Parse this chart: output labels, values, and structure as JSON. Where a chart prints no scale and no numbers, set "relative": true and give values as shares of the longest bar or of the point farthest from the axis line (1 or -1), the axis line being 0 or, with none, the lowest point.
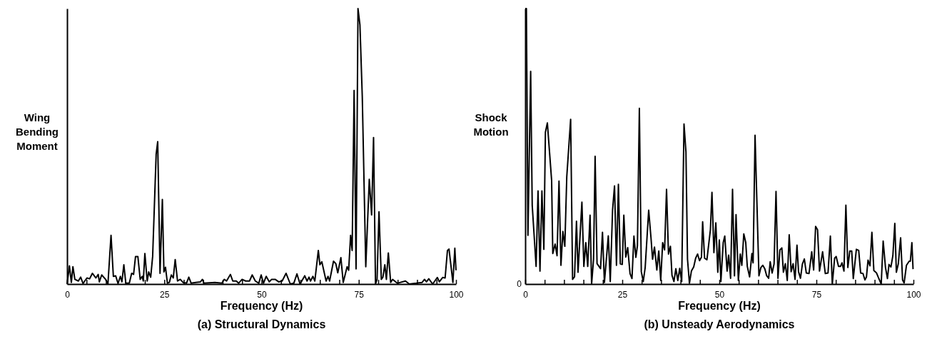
{
  "chart_data": [
    {
      "type": "line",
      "title": "(a) Structural Dynamics",
      "xlabel": "Frequency (Hz)",
      "ylabel": "Wing Bending Moment",
      "relative": true,
      "grid": false,
      "xlim": [
        0,
        100
      ],
      "xticks": [
        0,
        {
          "value": 5,
          "label": null
        },
        {
          "value": 10,
          "label": null
        },
        {
          "value": 15,
          "label": null
        },
        {
          "value": 20,
          "label": null
        },
        25,
        {
          "value": 30,
          "label": null
        },
        {
          "value": 35,
          "label": null
        },
        {
          "value": 40,
          "label": null
        },
        {
          "value": 45,
          "label": null
        },
        50,
        {
          "value": 55,
          "label": null
        },
        {
          "value": 60,
          "label": null
        },
        {
          "value": 65,
          "label": null
        },
        {
          "value": 70,
          "label": null
        },
        75,
        {
          "value": 80,
          "label": null
        },
        {
          "value": 85,
          "label": null
        },
        {
          "value": 90,
          "label": null
        },
        {
          "value": 95,
          "label": null
        },
        100
      ],
      "series": [
        {
          "color": "#000000",
          "x": [
            0,
            0.6,
            1.1,
            1.5,
            2.0,
            2.9,
            3.5,
            4.1,
            5.1,
            5.8,
            6.5,
            7.4,
            8.0,
            8.3,
            8.9,
            9.9,
            10.5,
            11.3,
            11.9,
            12.5,
            13.1,
            13.7,
            14.1,
            14.6,
            15.1,
            16.0,
            16.6,
            17.1,
            17.6,
            18.2,
            18.8,
            19.3,
            19.6,
            20.0,
            20.6,
            21.0,
            21.5,
            22.0,
            22.9,
            23.3,
            23.9,
            24.5,
            24.9,
            25.3,
            25.8,
            26.3,
            26.8,
            27.3,
            27.8,
            28.4,
            29.1,
            29.8,
            30.7,
            31.3,
            31.9,
            33.1,
            34.3,
            34.8,
            35.2,
            38.0,
            39.8,
            40.4,
            41.0,
            42.0,
            42.6,
            43.5,
            44.1,
            45.0,
            45.9,
            46.9,
            47.6,
            48.4,
            49.3,
            49.9,
            50.5,
            51.2,
            52.0,
            52.6,
            53.5,
            54.4,
            55.3,
            56.3,
            57.4,
            58.3,
            59.1,
            59.9,
            61.1,
            61.7,
            62.2,
            62.6,
            63.2,
            63.7,
            64.6,
            65.0,
            65.5,
            66.6,
            67.1,
            67.5,
            68.5,
            69.1,
            69.6,
            70.4,
            71.0,
            72.0,
            72.4,
            72.9,
            73.3,
            73.8,
            74.3,
            74.8,
            75.3,
            75.9,
            76.8,
            77.7,
            78.3,
            78.8,
            79.3,
            79.7,
            80.2,
            80.8,
            81.2,
            81.7,
            82.1,
            82.6,
            83.2,
            83.7,
            84.9,
            87.0,
            88.0,
            89.8,
            91.3,
            91.9,
            92.4,
            93.0,
            94.0,
            95.2,
            95.7,
            96.6,
            97.2,
            97.8,
            98.2,
            99.2,
            99.7,
            100
          ],
          "values": [
            0,
            0.066,
            0.006,
            0.063,
            0.017,
            0.011,
            0.025,
            0.002,
            0.022,
            0.019,
            0.039,
            0.022,
            0.035,
            0.008,
            0.033,
            0.017,
            0,
            0.177,
            0.028,
            0.03,
            0.002,
            0.028,
            0.008,
            0.07,
            0.003,
            0.003,
            0.039,
            0.035,
            0.1,
            0.1,
            0.017,
            0.028,
            0.011,
            0.111,
            0.011,
            0.044,
            0.025,
            0.1,
            0.471,
            0.517,
            0.039,
            0.307,
            0.044,
            0.061,
            0.003,
            0.006,
            0.033,
            0.022,
            0.089,
            0.011,
            0.017,
            0.006,
            0.003,
            0.025,
            0.003,
            0.006,
            0.008,
            0.017,
            0.003,
            0.006,
            0.003,
            0.017,
            0.011,
            0.035,
            0.011,
            0.011,
            0.003,
            0.017,
            0.011,
            0.011,
            0.033,
            0.011,
            0.003,
            0.033,
            0.003,
            0.028,
            0.008,
            0.017,
            0.017,
            0.008,
            0.011,
            0.039,
            0,
            0.003,
            0.037,
            0,
            0.03,
            0.011,
            0.025,
            0.011,
            0.028,
            0.011,
            0.122,
            0.07,
            0.081,
            0.011,
            0.028,
            0.011,
            0.083,
            0.074,
            0.041,
            0.096,
            0.006,
            0.063,
            0.05,
            0.177,
            0.122,
            0.703,
            0.055,
            1.0,
            0.941,
            0.681,
            0.063,
            0.38,
            0.251,
            0.532,
            0,
            0.017,
            0.262,
            0.017,
            0.025,
            0.07,
            0.017,
            0.113,
            0.006,
            0.017,
            0.003,
            0.011,
            0,
            0.003,
            0.006,
            0.017,
            0.008,
            0.019,
            0,
            0.024,
            0.008,
            0.024,
            0.022,
            0.122,
            0.127,
            0.006,
            0.13,
            0.05
          ]
        }
      ]
    },
    {
      "type": "line",
      "title": "(b) Unsteady Aerodynamics",
      "xlabel": "Frequency (Hz)",
      "ylabel": "Shock Motion",
      "relative": true,
      "grid": false,
      "xlim": [
        0,
        100
      ],
      "annotations": [
        "0"
      ],
      "xticks": [
        0,
        {
          "value": 5,
          "label": null
        },
        {
          "value": 10,
          "label": null
        },
        {
          "value": 15,
          "label": null
        },
        {
          "value": 20,
          "label": null
        },
        25,
        {
          "value": 30,
          "label": null
        },
        {
          "value": 35,
          "label": null
        },
        {
          "value": 40,
          "label": null
        },
        {
          "value": 45,
          "label": null
        },
        50,
        {
          "value": 55,
          "label": null
        },
        {
          "value": 60,
          "label": null
        },
        {
          "value": 65,
          "label": null
        },
        {
          "value": 70,
          "label": null
        },
        75,
        {
          "value": 80,
          "label": null
        },
        {
          "value": 85,
          "label": null
        },
        {
          "value": 90,
          "label": null
        },
        {
          "value": 95,
          "label": null
        },
        100
      ],
      "series": [
        {
          "color": "#000000",
          "x": [
            0,
            0.3,
            0.7,
            1.4,
            1.8,
            2.8,
            3.3,
            3.8,
            4.3,
            4.8,
            5.2,
            5.7,
            6.8,
            7.1,
            7.7,
            8.2,
            8.7,
            9.2,
            9.7,
            10.2,
            10.7,
            11.7,
            12.2,
            12.7,
            13.2,
            13.6,
            14.6,
            15.1,
            15.6,
            16.1,
            16.7,
            17.1,
            17.6,
            18.0,
            18.5,
            19.4,
            19.9,
            20.4,
            21.4,
            21.9,
            22.5,
            23.0,
            23.5,
            24.0,
            24.5,
            25.0,
            25.4,
            25.9,
            26.4,
            27.0,
            27.5,
            28.0,
            28.5,
            28.9,
            29.4,
            29.9,
            30.4,
            30.9,
            31.8,
            32.4,
            32.8,
            33.3,
            33.9,
            34.4,
            34.9,
            35.4,
            35.9,
            36.4,
            36.9,
            37.4,
            37.8,
            38.3,
            38.8,
            39.3,
            39.8,
            40.3,
            40.9,
            41.4,
            41.8,
            42.3,
            42.8,
            43.4,
            43.9,
            44.4,
            44.9,
            45.4,
            45.7,
            46.2,
            46.8,
            47.7,
            48.1,
            48.6,
            49.1,
            49.6,
            50.0,
            50.4,
            51.0,
            51.4,
            52.0,
            52.4,
            52.9,
            53.4,
            53.9,
            54.3,
            54.9,
            55.4,
            55.8,
            56.3,
            56.8,
            57.2,
            57.8,
            58.4,
            58.7,
            59.2,
            60.2,
            60.7,
            61.2,
            61.7,
            62.2,
            62.7,
            63.1,
            63.6,
            64.1,
            64.6,
            65.1,
            65.6,
            66.1,
            66.5,
            67.0,
            67.5,
            68.0,
            68.5,
            69.0,
            69.5,
            70.0,
            70.4,
            70.9,
            71.4,
            71.9,
            72.4,
            73.1,
            73.8,
            74.3,
            74.8,
            75.3,
            75.8,
            76.6,
            77.3,
            78.0,
            78.6,
            79.1,
            79.7,
            80.1,
            80.7,
            81.2,
            81.6,
            82.1,
            82.6,
            83.1,
            83.6,
            84.1,
            84.5,
            85.3,
            85.9,
            86.4,
            87.0,
            87.5,
            87.9,
            88.3,
            88.8,
            89.3,
            89.8,
            90.5,
            90.9,
            91.7,
            92.2,
            92.8,
            93.3,
            93.7,
            94.2,
            94.7,
            95.2,
            95.6,
            96.1,
            96.7,
            97.2,
            97.6,
            98.2,
            98.9,
            99.2,
            99.6,
            99.9
          ],
          "values": [
            1.0,
            1.0,
            0.177,
            0.772,
            0.286,
            0.064,
            0.338,
            0.047,
            0.338,
            0.126,
            0.551,
            0.585,
            0.376,
            0.111,
            0.145,
            0.103,
            0.374,
            0.068,
            0.191,
            0.137,
            0.389,
            0.598,
            0.017,
            0.026,
            0.228,
            0.043,
            0.297,
            0.064,
            0.15,
            0.064,
            0.25,
            0,
            0.09,
            0.464,
            0.074,
            0.056,
            0.188,
            0.006,
            0.175,
            0.009,
            0.269,
            0.356,
            0.068,
            0.362,
            0.073,
            0.071,
            0.25,
            0.098,
            0.132,
            0.038,
            0.02,
            0.174,
            0.097,
            0.139,
            0.638,
            0.045,
            0.009,
            0.06,
            0.268,
            0.167,
            0.09,
            0.134,
            0.051,
            0.12,
            0.013,
            0.15,
            0.124,
            0.344,
            0.109,
            0.137,
            0.032,
            0.009,
            0.056,
            0.013,
            0.057,
            0.009,
            0.581,
            0.479,
            0.09,
            0.003,
            0.047,
            0.062,
            0.094,
            0.109,
            0.085,
            0.098,
            0.226,
            0.094,
            0.088,
            0.197,
            0.333,
            0.114,
            0.222,
            0.043,
            0.16,
            0.009,
            0.15,
            0.174,
            0.047,
            0.105,
            0.021,
            0.344,
            0.03,
            0.252,
            0.013,
            0.109,
            0.068,
            0.182,
            0.151,
            0.064,
            0.026,
            0.111,
            0.077,
            0.54,
            0.03,
            0.06,
            0.068,
            0.056,
            0.03,
            0.021,
            0.081,
            0.04,
            0.073,
            0.336,
            0.021,
            0.124,
            0.131,
            0.043,
            0.074,
            0.013,
            0.179,
            0.045,
            0.074,
            0.017,
            0.141,
            0.045,
            0.021,
            0.073,
            0.091,
            0.04,
            0.038,
            0.117,
            0.051,
            0.209,
            0.197,
            0.047,
            0.117,
            0.038,
            0.04,
            0.174,
            0,
            0.094,
            0.1,
            0.064,
            0.064,
            0.077,
            0.047,
            0.286,
            0.06,
            0.12,
            0.12,
            0.02,
            0.126,
            0.122,
            0.04,
            0.038,
            0.015,
            0.026,
            0.087,
            0.066,
            0.188,
            0.049,
            0.04,
            0.026,
            0,
            0.156,
            0.06,
            0.02,
            0.071,
            0.062,
            0.103,
            0.22,
            0.043,
            0.073,
            0.168,
            0.015,
            0.004,
            0.068,
            0.083,
            0.083,
            0.15,
            0.054
          ]
        }
      ]
    }
  ]
}
